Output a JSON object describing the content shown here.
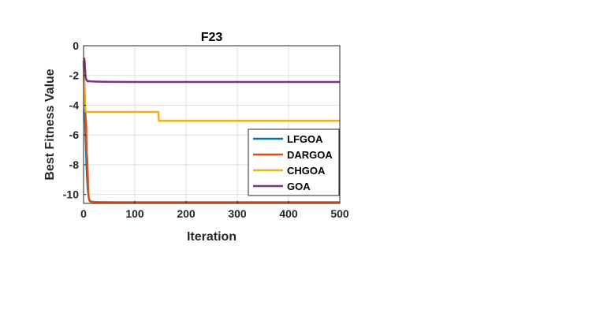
{
  "chart_data": {
    "type": "line",
    "title": "F23",
    "xlabel": "Iteration",
    "ylabel": "Best Fitness Value",
    "xlim": [
      0,
      500
    ],
    "ylim": [
      -10.6,
      0
    ],
    "xticks": [
      0,
      100,
      200,
      300,
      400,
      500
    ],
    "xtick_labels": [
      "0",
      "100",
      "200",
      "300",
      "400",
      "500"
    ],
    "yticks": [
      0,
      -2,
      -4,
      -6,
      -8,
      -10
    ],
    "ytick_labels": [
      "0",
      "-2",
      "-4",
      "-6",
      "-8",
      "-10"
    ],
    "grid": true,
    "legend_position": "right",
    "series": [
      {
        "name": "LFGOA",
        "color": "#0072BD",
        "x": [
          0,
          2,
          4,
          6,
          8,
          10,
          12,
          15,
          20,
          30,
          60,
          100,
          200,
          300,
          400,
          500
        ],
        "y": [
          -1.2,
          -3.6,
          -6.2,
          -8.3,
          -9.6,
          -10.2,
          -10.4,
          -10.48,
          -10.5,
          -10.52,
          -10.53,
          -10.53,
          -10.53,
          -10.53,
          -10.53,
          -10.53
        ]
      },
      {
        "name": "DARGOA",
        "color": "#D95319",
        "x": [
          0,
          2,
          4,
          5,
          6,
          7,
          8,
          9,
          10,
          11,
          12,
          14,
          18,
          25,
          60,
          100,
          200,
          300,
          400,
          500
        ],
        "y": [
          -1.0,
          -3.0,
          -4.9,
          -5.1,
          -7.2,
          -7.5,
          -8.4,
          -9.6,
          -10.2,
          -10.35,
          -10.45,
          -10.48,
          -10.5,
          -10.52,
          -10.53,
          -10.53,
          -10.53,
          -10.53,
          -10.53,
          -10.53
        ]
      },
      {
        "name": "CHGOA",
        "color": "#EDB120",
        "x": [
          0,
          1,
          2,
          3,
          4,
          5,
          6,
          146,
          147,
          150,
          200,
          300,
          400,
          500
        ],
        "y": [
          -1.0,
          -2.4,
          -3.5,
          -4.2,
          -4.4,
          -4.45,
          -4.45,
          -4.45,
          -5.05,
          -5.05,
          -5.05,
          -5.05,
          -5.05,
          -5.05
        ]
      },
      {
        "name": "GOA",
        "color": "#7E2F8E",
        "x": [
          0,
          1,
          2,
          3,
          4,
          5,
          6,
          8,
          10,
          15,
          30,
          60,
          100,
          200,
          300,
          400,
          500
        ],
        "y": [
          -0.9,
          -0.85,
          -1.0,
          -1.6,
          -2.1,
          -2.25,
          -2.3,
          -2.4,
          -2.38,
          -2.4,
          -2.42,
          -2.43,
          -2.44,
          -2.44,
          -2.44,
          -2.44,
          -2.44
        ]
      }
    ]
  }
}
